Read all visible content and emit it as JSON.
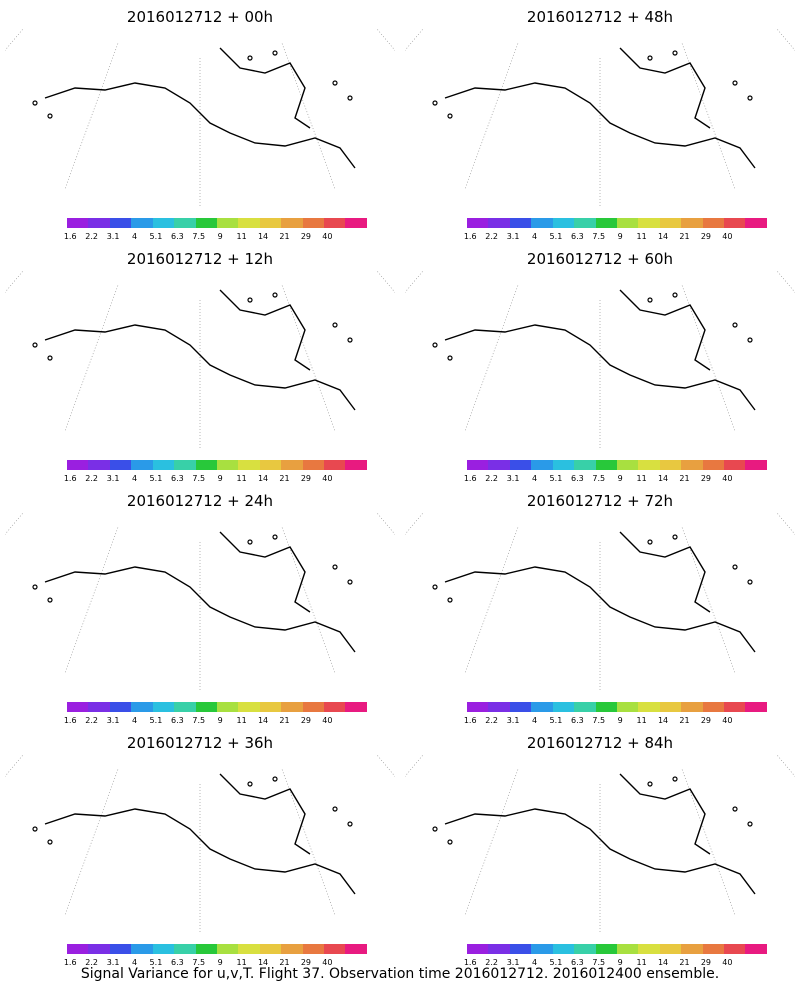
{
  "colorbar": {
    "colors": [
      "#9a1fe0",
      "#7a2fe6",
      "#3a4fe8",
      "#2a9ae8",
      "#2ac0e0",
      "#38d0a8",
      "#28c83a",
      "#a8e040",
      "#d8e040",
      "#e8c840",
      "#e8a040",
      "#e87840",
      "#e84850",
      "#e81a80"
    ],
    "labels": [
      "1.6",
      "2.2",
      "3.1",
      "4",
      "5.1",
      "6.3",
      "7.5",
      "9",
      "11",
      "14",
      "21",
      "29",
      "40"
    ]
  },
  "panels": [
    {
      "title": "2016012712 + 00h",
      "colorbar_labels": [
        "1.6",
        "2.2",
        "3.1",
        "4",
        "5.1",
        "6.3",
        "7.5",
        "9",
        "11",
        "14",
        "21",
        "29",
        "40"
      ]
    },
    {
      "title": "2016012712 + 48h",
      "colorbar_labels": [
        "1.6",
        "2.2",
        "3.1",
        "4",
        "5.1",
        "6.3",
        "7.5",
        "9",
        "11",
        "14",
        "21",
        "29",
        "40"
      ]
    },
    {
      "title": "2016012712 + 12h",
      "colorbar_labels": [
        "1.6",
        "2.2",
        "3.1",
        "4",
        "5.1",
        "6.3",
        "7.5",
        "9",
        "11",
        "14",
        "21",
        "29",
        "40"
      ]
    },
    {
      "title": "2016012712 + 60h",
      "colorbar_labels": [
        "1.6",
        "2.2",
        "3.1",
        "4",
        "5.1",
        "6.3",
        "7.5",
        "9",
        "11",
        "14",
        "21",
        "29",
        "40"
      ]
    },
    {
      "title": "2016012712 + 24h",
      "colorbar_labels": [
        "1.6",
        "2.2",
        "3.1",
        "4",
        "5.1",
        "6.3",
        "7.5",
        "9",
        "11",
        "14",
        "21",
        "29",
        "40"
      ]
    },
    {
      "title": "2016012712 + 72h",
      "colorbar_labels": [
        "1.6",
        "2.2",
        "3.1",
        "4",
        "5.1",
        "6.3",
        "7.5",
        "9",
        "11",
        "14",
        "21",
        "29",
        "40"
      ]
    },
    {
      "title": "2016012712 + 36h",
      "colorbar_labels": [
        "1.6",
        "2.2",
        "3.1",
        "4",
        "5.1",
        "6.3",
        "7.5",
        "9",
        "11",
        "14",
        "21",
        "29",
        "40"
      ]
    },
    {
      "title": "2016012712 + 84h",
      "colorbar_labels": [
        "1.6",
        "2.2",
        "3.1",
        "4",
        "5.1",
        "6.3",
        "7.5",
        "9",
        "11",
        "14",
        "21",
        "29",
        "40"
      ]
    }
  ],
  "footer": "Signal Variance for u,v,T. Flight 37. Observation time 2016012712. 2016012400 ensemble."
}
